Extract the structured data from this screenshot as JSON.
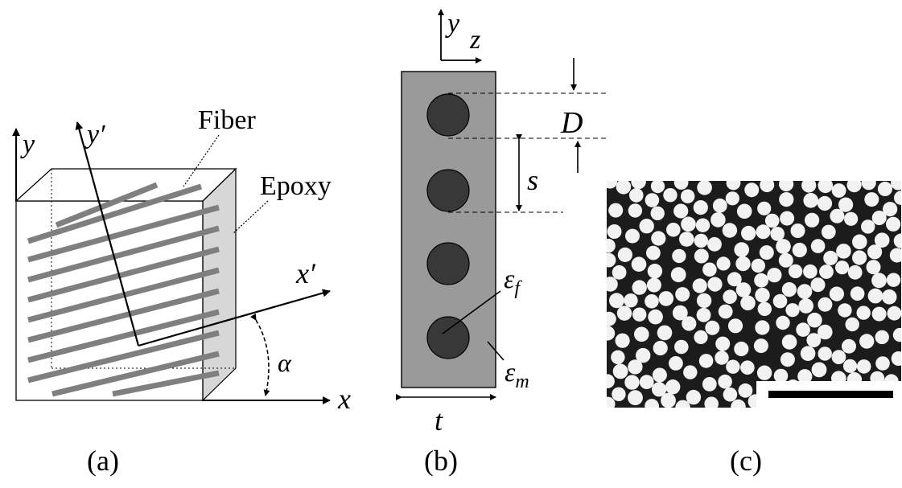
{
  "panel_a": {
    "fiber_label": "Fiber",
    "epoxy_label": "Epoxy",
    "axis_y": "y",
    "axis_y_prime": "y′",
    "axis_x": "x",
    "axis_x_prime": "x′",
    "angle_label": "α",
    "caption": "(a)"
  },
  "panel_b": {
    "axis_y": "y",
    "axis_z": "z",
    "diameter_label": "D",
    "spacing_label": "s",
    "thickness_label": "t",
    "eps_f_main": "ε",
    "eps_f_sub": "f",
    "eps_m_main": "ε",
    "eps_m_sub": "m",
    "caption": "(b)"
  },
  "panel_c": {
    "caption": "(c)"
  },
  "colors": {
    "fiber_rod": "#7f7f7f",
    "matrix_gray": "#9a9a9a",
    "fiber_circle": "#383838",
    "micrograph_bg": "#1c1c1c",
    "micrograph_fiber": "#f2f2f2"
  }
}
